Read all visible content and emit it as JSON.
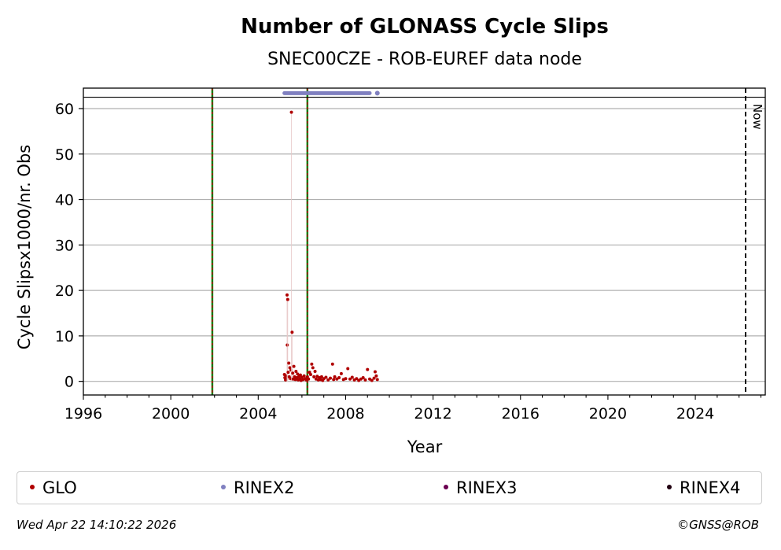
{
  "chart_data": {
    "type": "scatter",
    "title": "Number of GLONASS Cycle Slips",
    "subtitle": "SNEC00CZE - ROB-EUREF data node",
    "xlabel": "Year",
    "ylabel": "Cycle Slipsx1000/nr. Obs",
    "xlim": [
      1996.0,
      2027.2
    ],
    "ylim": [
      -3,
      64.5
    ],
    "xticks": [
      1996,
      2000,
      2004,
      2008,
      2012,
      2016,
      2020,
      2024
    ],
    "yticks": [
      0,
      10,
      20,
      30,
      40,
      50,
      60
    ],
    "grid": "horizontal",
    "reference_lines": [
      {
        "x": 2001.9,
        "style": "green-red-dashed"
      },
      {
        "x": 2006.25,
        "style": "green-red-dashed"
      },
      {
        "x": 2026.3,
        "style": "black-dashed",
        "label": "Now"
      }
    ],
    "top_band_y": 62.5,
    "series": [
      {
        "name": "GLO",
        "color": "#b00000",
        "points": [
          [
            2005.2,
            1.5
          ],
          [
            2005.22,
            0.8
          ],
          [
            2005.25,
            0.3
          ],
          [
            2005.28,
            1.2
          ],
          [
            2005.3,
            0.5
          ],
          [
            2005.32,
            19.0
          ],
          [
            2005.33,
            8.0
          ],
          [
            2005.35,
            18.0
          ],
          [
            2005.37,
            2.0
          ],
          [
            2005.4,
            4.0
          ],
          [
            2005.42,
            1.0
          ],
          [
            2005.45,
            3.0
          ],
          [
            2005.48,
            0.6
          ],
          [
            2005.5,
            2.5
          ],
          [
            2005.52,
            59.2
          ],
          [
            2005.55,
            10.8
          ],
          [
            2005.58,
            1.8
          ],
          [
            2005.6,
            0.5
          ],
          [
            2005.63,
            3.3
          ],
          [
            2005.66,
            1.0
          ],
          [
            2005.7,
            0.4
          ],
          [
            2005.73,
            2.2
          ],
          [
            2005.76,
            0.8
          ],
          [
            2005.8,
            1.6
          ],
          [
            2005.83,
            0.3
          ],
          [
            2005.86,
            1.0
          ],
          [
            2005.9,
            0.5
          ],
          [
            2005.93,
            1.4
          ],
          [
            2005.96,
            0.2
          ],
          [
            2006.0,
            0.9
          ],
          [
            2006.05,
            0.4
          ],
          [
            2006.1,
            1.2
          ],
          [
            2006.15,
            0.6
          ],
          [
            2006.2,
            0.3
          ],
          [
            2006.25,
            1.0
          ],
          [
            2006.3,
            0.5
          ],
          [
            2006.35,
            2.0
          ],
          [
            2006.4,
            1.5
          ],
          [
            2006.45,
            3.8
          ],
          [
            2006.5,
            3.0
          ],
          [
            2006.55,
            1.0
          ],
          [
            2006.6,
            2.2
          ],
          [
            2006.65,
            0.5
          ],
          [
            2006.7,
            1.1
          ],
          [
            2006.75,
            0.3
          ],
          [
            2006.8,
            0.8
          ],
          [
            2006.85,
            0.4
          ],
          [
            2006.9,
            1.0
          ],
          [
            2006.95,
            0.2
          ],
          [
            2007.0,
            0.6
          ],
          [
            2007.1,
            0.9
          ],
          [
            2007.2,
            0.3
          ],
          [
            2007.3,
            0.7
          ],
          [
            2007.4,
            3.8
          ],
          [
            2007.45,
            0.4
          ],
          [
            2007.5,
            1.0
          ],
          [
            2007.6,
            0.5
          ],
          [
            2007.7,
            0.8
          ],
          [
            2007.8,
            1.7
          ],
          [
            2007.9,
            0.4
          ],
          [
            2008.0,
            0.6
          ],
          [
            2008.1,
            2.8
          ],
          [
            2008.2,
            0.5
          ],
          [
            2008.3,
            0.9
          ],
          [
            2008.4,
            0.3
          ],
          [
            2008.5,
            0.6
          ],
          [
            2008.6,
            0.2
          ],
          [
            2008.7,
            0.5
          ],
          [
            2008.8,
            0.8
          ],
          [
            2008.9,
            0.3
          ],
          [
            2009.0,
            2.6
          ],
          [
            2009.1,
            0.5
          ],
          [
            2009.2,
            0.2
          ],
          [
            2009.3,
            0.7
          ],
          [
            2009.35,
            2.1
          ],
          [
            2009.4,
            1.2
          ],
          [
            2009.45,
            0.4
          ]
        ]
      },
      {
        "name": "RINEX2",
        "color": "#8080c0",
        "start": 2005.2,
        "end": 2009.45
      },
      {
        "name": "RINEX3",
        "color": "#6a0050"
      },
      {
        "name": "RINEX4",
        "color": "#200010"
      }
    ]
  },
  "footer": {
    "timestamp": "Wed Apr 22 14:10:22 2026",
    "credit": "©GNSS@ROB"
  }
}
